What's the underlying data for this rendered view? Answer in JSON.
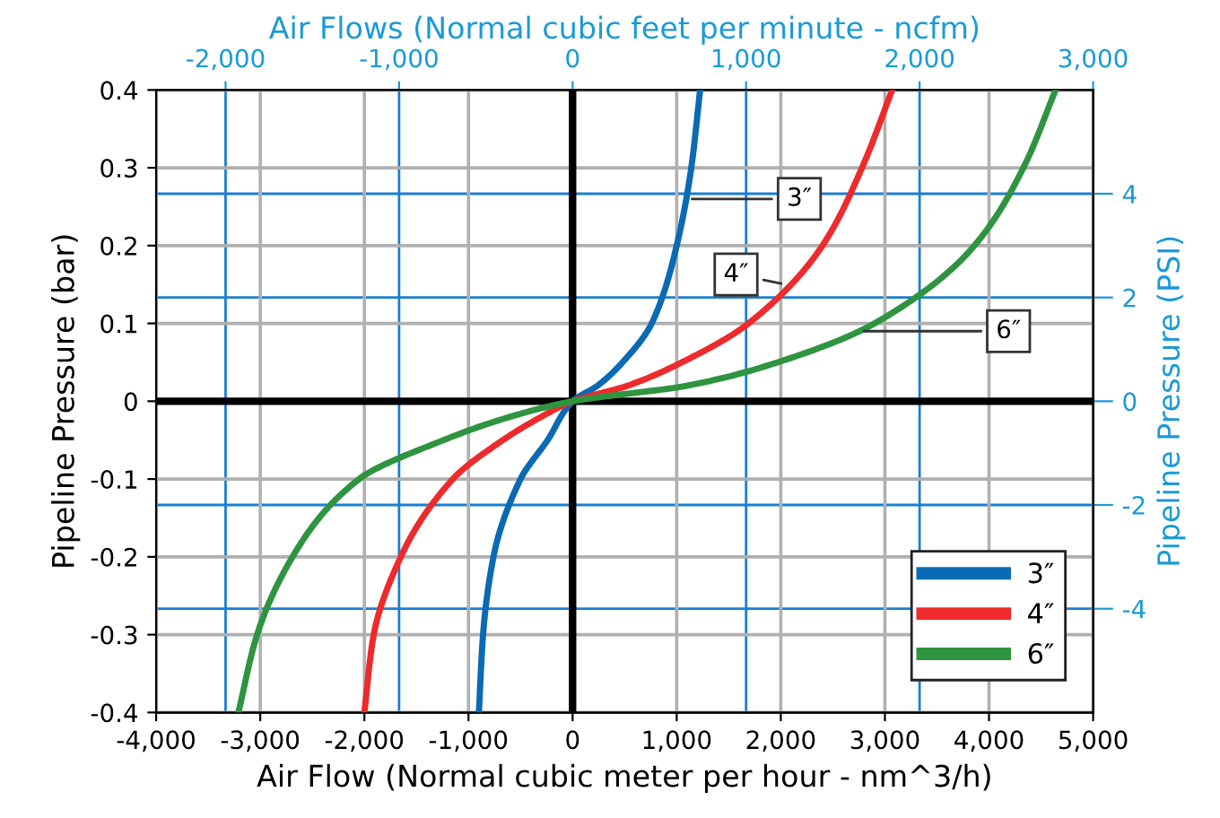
{
  "chart_data": {
    "type": "line",
    "xlabel": "Air Flow (Normal cubic meter per hour - nm^3/h)",
    "ylabel": "Pipeline Pressure (bar)",
    "x2label": "Air Flows (Normal cubic feet per minute - ncfm)",
    "y2label": "Pipeline Pressure (PSI)",
    "xlim": [
      -4000,
      5000
    ],
    "xticks": [
      {
        "value": -4000,
        "label": "-4,000"
      },
      {
        "value": -3000,
        "label": "-3,000"
      },
      {
        "value": -2000,
        "label": "-2,000"
      },
      {
        "value": -1000,
        "label": "-1,000"
      },
      0,
      {
        "value": 1000,
        "label": "1,000"
      },
      {
        "value": 2000,
        "label": "2,000"
      },
      {
        "value": 3000,
        "label": "3,000"
      },
      {
        "value": 4000,
        "label": "4,000"
      },
      {
        "value": 5000,
        "label": "5,000"
      }
    ],
    "ylim": [
      -0.4,
      0.4
    ],
    "yticks": [
      -0.4,
      -0.3,
      -0.2,
      -0.1,
      0,
      0.1,
      0.2,
      0.3,
      0.4
    ],
    "x2lim": [
      -2400,
      3000
    ],
    "x2ticks": [
      {
        "value": -2000,
        "label": "-2,000"
      },
      {
        "value": -1000,
        "label": "-1,000"
      },
      0,
      {
        "value": 1000,
        "label": "1,000"
      },
      {
        "value": 2000,
        "label": "2,000"
      },
      {
        "value": 3000,
        "label": "3,000"
      }
    ],
    "y2lim": [
      -6,
      6
    ],
    "y2ticks": [
      -4,
      -2,
      0,
      2,
      4
    ],
    "grid": true,
    "legend": "bottom right",
    "marker": "none",
    "line_style": "solid",
    "series": [
      {
        "name": "3″",
        "color": "#0a6ab3",
        "x": [
          -900,
          -860,
          -760,
          -500,
          -240,
          0,
          240,
          480,
          760,
          1000,
          1140,
          1225
        ],
        "values": [
          -0.4,
          -0.3,
          -0.2,
          -0.1,
          -0.05,
          0,
          0.02,
          0.05,
          0.1,
          0.2,
          0.3,
          0.4
        ]
      },
      {
        "name": "4″",
        "color": "#ee2a2c",
        "x": [
          -2000,
          -1910,
          -1650,
          -1150,
          -670,
          -300,
          0,
          530,
          1050,
          1690,
          2400,
          2780,
          3070
        ],
        "values": [
          -0.4,
          -0.3,
          -0.2,
          -0.1,
          -0.05,
          -0.02,
          0,
          0.02,
          0.05,
          0.1,
          0.2,
          0.3,
          0.4
        ]
      },
      {
        "name": "6″",
        "color": "#2e9440",
        "x": [
          -3210,
          -3030,
          -2690,
          -2050,
          -1240,
          -600,
          0,
          1100,
          1970,
          2900,
          3860,
          4330,
          4640
        ],
        "values": [
          -0.4,
          -0.3,
          -0.2,
          -0.1,
          -0.05,
          -0.02,
          0,
          0.02,
          0.05,
          0.1,
          0.2,
          0.3,
          0.4
        ]
      }
    ],
    "annotations": [
      {
        "text": "3″",
        "x": 1100,
        "y": 0.26
      },
      {
        "text": "4″",
        "x": 2050,
        "y": 0.15
      },
      {
        "text": "6″",
        "x": 2750,
        "y": 0.09
      }
    ]
  }
}
